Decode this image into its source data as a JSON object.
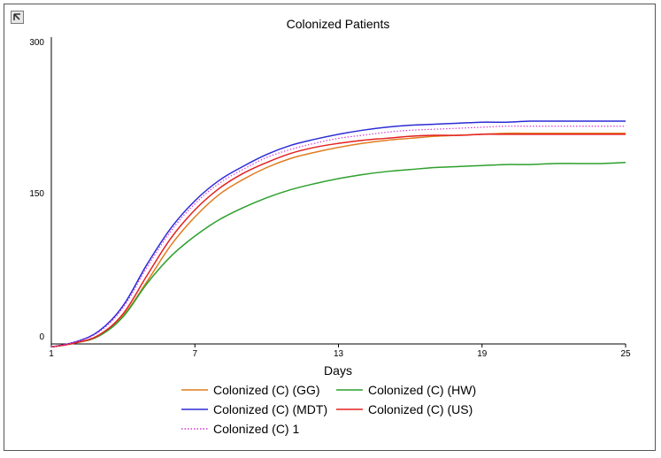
{
  "chart_data": {
    "type": "line",
    "title": "Colonized Patients",
    "xlabel": "Days",
    "ylabel": "",
    "xlim": [
      1,
      25
    ],
    "ylim": [
      0,
      300
    ],
    "x_ticks": [
      "1",
      "7",
      "13",
      "19",
      "25"
    ],
    "y_ticks": [
      "0",
      "150",
      "300"
    ],
    "x": [
      1,
      2,
      3,
      4,
      5,
      6,
      7,
      8,
      9,
      10,
      11,
      12,
      13,
      14,
      15,
      16,
      17,
      18,
      19,
      20,
      21,
      22,
      23,
      24,
      25
    ],
    "series": [
      {
        "name": "Colonized (C) (GG)",
        "color": "#e07b1f",
        "style": "solid",
        "values": [
          -3,
          1,
          8,
          28,
          62,
          98,
          126,
          148,
          163,
          175,
          184,
          190,
          195,
          199,
          202,
          204,
          206,
          207,
          208,
          209,
          209,
          209,
          209,
          209,
          209
        ]
      },
      {
        "name": "Colonized (C) (HW)",
        "color": "#2ca02c",
        "style": "solid",
        "values": [
          -3,
          1,
          8,
          27,
          60,
          87,
          107,
          123,
          135,
          145,
          153,
          159,
          164,
          168,
          171,
          173,
          175,
          176,
          177,
          178,
          178,
          179,
          179,
          179,
          180
        ]
      },
      {
        "name": "Colonized (C) (MDT)",
        "color": "#2b2bd6",
        "style": "solid",
        "values": [
          -3,
          2,
          13,
          38,
          79,
          115,
          142,
          162,
          176,
          188,
          197,
          203,
          208,
          212,
          215,
          217,
          218,
          219,
          220,
          220,
          221,
          221,
          221,
          221,
          221
        ]
      },
      {
        "name": "Colonized (C) (US)",
        "color": "#e32020",
        "style": "solid",
        "values": [
          -3,
          1,
          9,
          30,
          68,
          105,
          133,
          154,
          169,
          180,
          189,
          195,
          199,
          202,
          204,
          206,
          207,
          207,
          208,
          208,
          208,
          208,
          208,
          208,
          208
        ]
      },
      {
        "name": "Colonized (C) 1",
        "color": "#d63bd6",
        "style": "dotted",
        "values": [
          -3,
          2,
          12,
          36,
          76,
          112,
          139,
          159,
          173,
          185,
          193,
          199,
          204,
          207,
          210,
          212,
          213,
          214,
          215,
          216,
          216,
          216,
          216,
          216,
          216
        ]
      }
    ],
    "legend": "bottom"
  }
}
